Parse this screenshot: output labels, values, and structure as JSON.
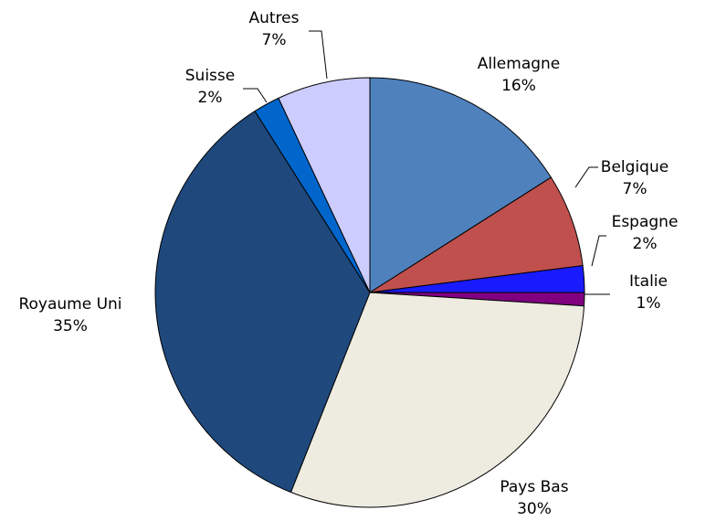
{
  "chart_data": {
    "type": "pie",
    "categories": [
      "Allemagne",
      "Belgique",
      "Espagne",
      "Italie",
      "Pays Bas",
      "Royaume Uni",
      "Suisse",
      "Autres"
    ],
    "values": [
      16,
      7,
      2,
      1,
      30,
      35,
      2,
      7
    ],
    "value_labels": [
      "16%",
      "7%",
      "2%",
      "1%",
      "30%",
      "35%",
      "2%",
      "7%"
    ],
    "colors": [
      "#4f81bd",
      "#c0504d",
      "#1a1aff",
      "#800080",
      "#eeece1",
      "#1f497d",
      "#0066cc",
      "#ccccff"
    ]
  }
}
